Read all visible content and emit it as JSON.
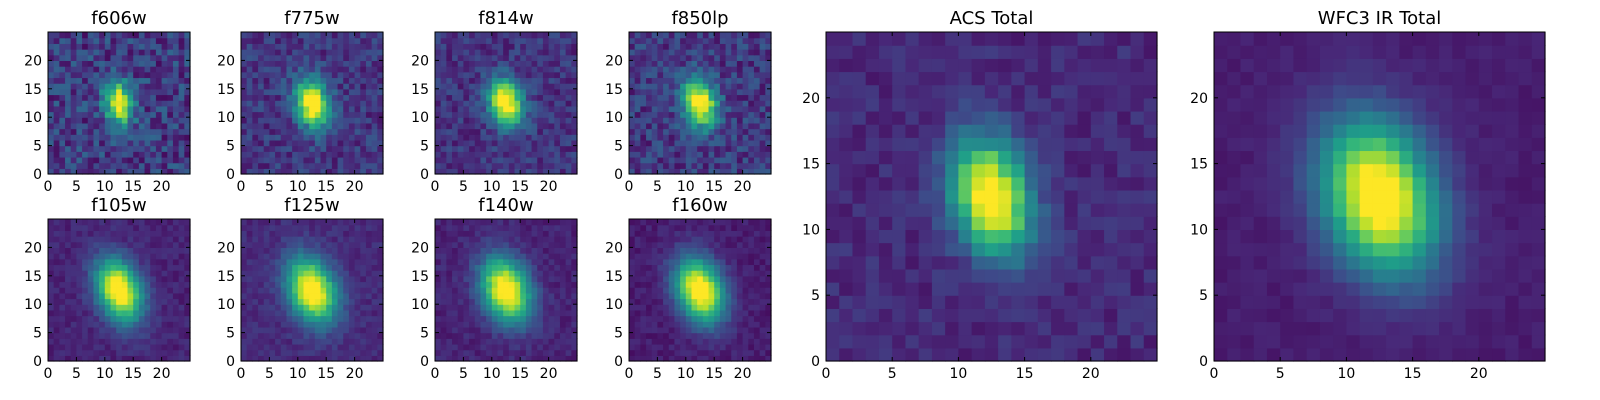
{
  "chart_data": [
    {
      "type": "heatmap",
      "title": "f606w",
      "x_ticks": [
        "0",
        "5",
        "10",
        "15",
        "20"
      ],
      "y_ticks": [
        "0",
        "5",
        "10",
        "15",
        "20"
      ],
      "xlim": [
        0,
        25
      ],
      "ylim": [
        0,
        25
      ],
      "colormap": "viridis",
      "peak": [
        12,
        12
      ],
      "sigma": [
        1.7,
        2.5
      ],
      "rotation_deg": 10,
      "noise": 0.3,
      "background": 0.18,
      "grid": false
    },
    {
      "type": "heatmap",
      "title": "f775w",
      "x_ticks": [
        "0",
        "5",
        "10",
        "15",
        "20"
      ],
      "y_ticks": [
        "0",
        "5",
        "10",
        "15",
        "20"
      ],
      "xlim": [
        0,
        25
      ],
      "ylim": [
        0,
        25
      ],
      "colormap": "viridis",
      "peak": [
        12,
        12
      ],
      "sigma": [
        2.0,
        3.0
      ],
      "rotation_deg": 15,
      "noise": 0.22,
      "background": 0.16,
      "grid": false
    },
    {
      "type": "heatmap",
      "title": "f814w",
      "x_ticks": [
        "0",
        "5",
        "10",
        "15",
        "20"
      ],
      "y_ticks": [
        "0",
        "5",
        "10",
        "15",
        "20"
      ],
      "xlim": [
        0,
        25
      ],
      "ylim": [
        0,
        25
      ],
      "colormap": "viridis",
      "peak": [
        12,
        12
      ],
      "sigma": [
        2.0,
        3.0
      ],
      "rotation_deg": 15,
      "noise": 0.2,
      "background": 0.15,
      "grid": false
    },
    {
      "type": "heatmap",
      "title": "f850lp",
      "x_ticks": [
        "0",
        "5",
        "10",
        "15",
        "20"
      ],
      "y_ticks": [
        "0",
        "5",
        "10",
        "15",
        "20"
      ],
      "xlim": [
        0,
        25
      ],
      "ylim": [
        0,
        25
      ],
      "colormap": "viridis",
      "peak": [
        12,
        12
      ],
      "sigma": [
        2.0,
        3.0
      ],
      "rotation_deg": 15,
      "noise": 0.25,
      "background": 0.17,
      "grid": false
    },
    {
      "type": "heatmap",
      "title": "f105w",
      "x_ticks": [
        "0",
        "5",
        "10",
        "15",
        "20"
      ],
      "y_ticks": [
        "0",
        "5",
        "10",
        "15",
        "20"
      ],
      "xlim": [
        0,
        25
      ],
      "ylim": [
        0,
        25
      ],
      "colormap": "viridis",
      "peak": [
        12,
        12
      ],
      "sigma": [
        2.6,
        4.0
      ],
      "rotation_deg": 22,
      "noise": 0.1,
      "background": 0.1,
      "grid": false
    },
    {
      "type": "heatmap",
      "title": "f125w",
      "x_ticks": [
        "0",
        "5",
        "10",
        "15",
        "20"
      ],
      "y_ticks": [
        "0",
        "5",
        "10",
        "15",
        "20"
      ],
      "xlim": [
        0,
        25
      ],
      "ylim": [
        0,
        25
      ],
      "colormap": "viridis",
      "peak": [
        12,
        12
      ],
      "sigma": [
        2.8,
        4.1
      ],
      "rotation_deg": 22,
      "noise": 0.1,
      "background": 0.12,
      "grid": false
    },
    {
      "type": "heatmap",
      "title": "f140w",
      "x_ticks": [
        "0",
        "5",
        "10",
        "15",
        "20"
      ],
      "y_ticks": [
        "0",
        "5",
        "10",
        "15",
        "20"
      ],
      "xlim": [
        0,
        25
      ],
      "ylim": [
        0,
        25
      ],
      "colormap": "viridis",
      "peak": [
        12,
        12
      ],
      "sigma": [
        2.8,
        4.1
      ],
      "rotation_deg": 22,
      "noise": 0.1,
      "background": 0.1,
      "grid": false
    },
    {
      "type": "heatmap",
      "title": "f160w",
      "x_ticks": [
        "0",
        "5",
        "10",
        "15",
        "20"
      ],
      "y_ticks": [
        "0",
        "5",
        "10",
        "15",
        "20"
      ],
      "xlim": [
        0,
        25
      ],
      "ylim": [
        0,
        25
      ],
      "colormap": "viridis",
      "peak": [
        12,
        12
      ],
      "sigma": [
        2.8,
        4.1
      ],
      "rotation_deg": 22,
      "noise": 0.09,
      "background": 0.08,
      "grid": false
    },
    {
      "type": "heatmap",
      "title": "ACS Total",
      "x_ticks": [
        "0",
        "5",
        "10",
        "15",
        "20"
      ],
      "y_ticks": [
        "0",
        "5",
        "10",
        "15",
        "20"
      ],
      "xlim": [
        0,
        25
      ],
      "ylim": [
        0,
        25
      ],
      "colormap": "viridis",
      "peak": [
        12,
        12
      ],
      "sigma": [
        2.0,
        3.1
      ],
      "rotation_deg": 15,
      "noise": 0.12,
      "background": 0.12,
      "grid": false
    },
    {
      "type": "heatmap",
      "title": "WFC3 IR Total",
      "x_ticks": [
        "0",
        "5",
        "10",
        "15",
        "20"
      ],
      "y_ticks": [
        "0",
        "5",
        "10",
        "15",
        "20"
      ],
      "xlim": [
        0,
        25
      ],
      "ylim": [
        0,
        25
      ],
      "colormap": "viridis",
      "peak": [
        12,
        12
      ],
      "sigma": [
        2.9,
        4.2
      ],
      "rotation_deg": 20,
      "noise": 0.05,
      "background": 0.08,
      "grid": false
    }
  ]
}
